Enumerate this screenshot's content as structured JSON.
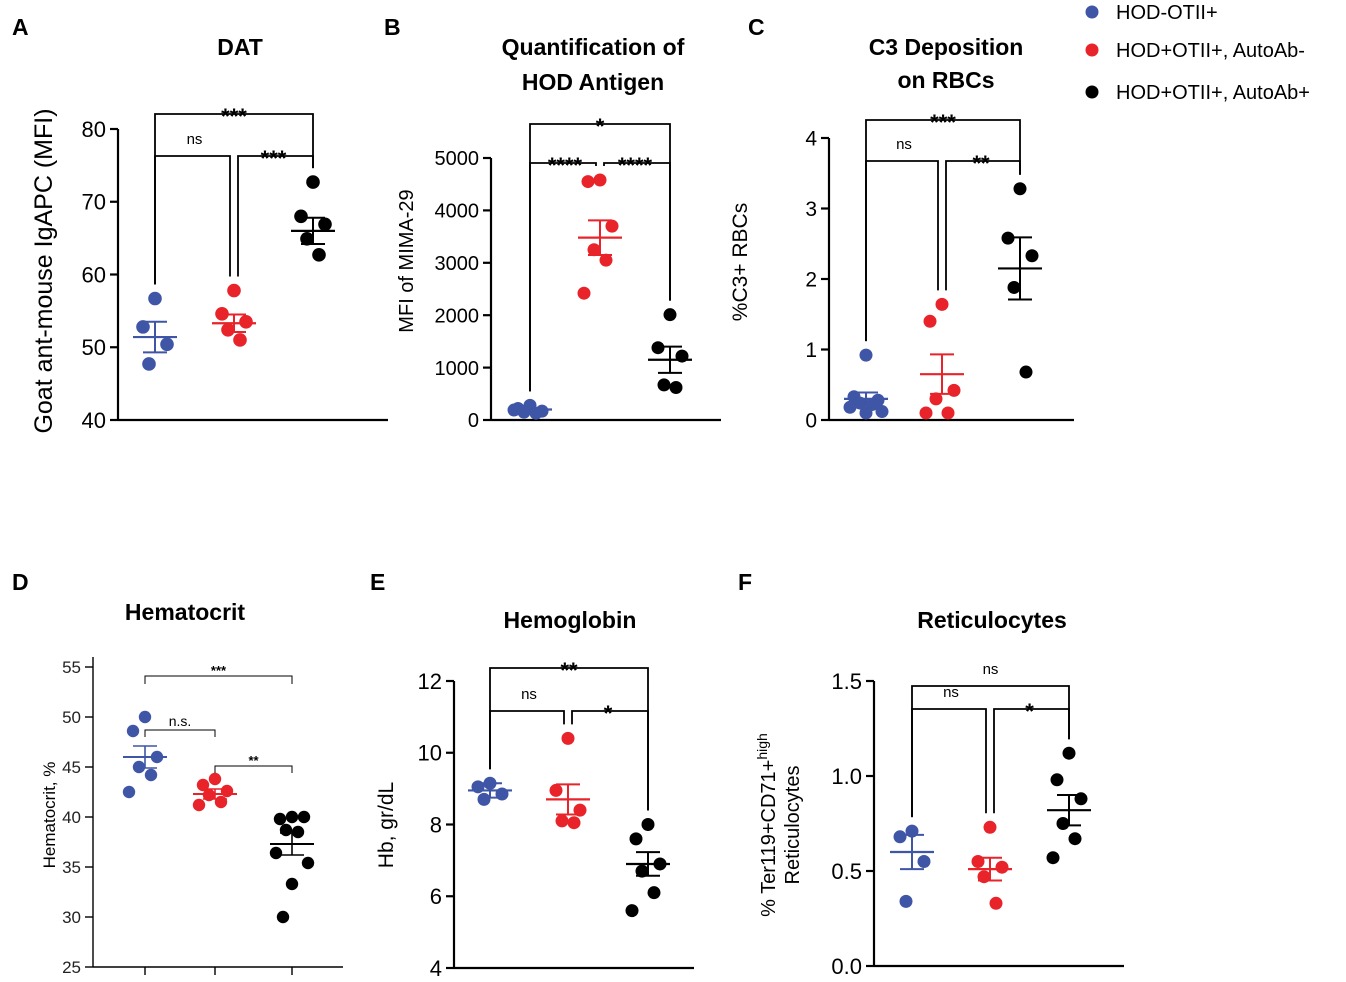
{
  "colors": {
    "group1": "#3f55a5",
    "group2": "#e8232a",
    "group3": "#000000",
    "axis": "#000000",
    "bracket": "#000000"
  },
  "legend": [
    {
      "label": "HOD-OTII+",
      "color": "#3f55a5"
    },
    {
      "label": "HOD+OTII+, AutoAb-",
      "color": "#e8232a"
    },
    {
      "label": "HOD+OTII+, AutoAb+",
      "color": "#000000"
    }
  ],
  "chart_data": [
    {
      "panel": "A",
      "type": "scatter",
      "title": "DAT",
      "title2": "",
      "ylabel": "Goat ant-mouse IgAPC (MFI)",
      "ylabel2": "",
      "ylim": [
        40,
        80
      ],
      "yticks": [
        "40",
        "50",
        "60",
        "70",
        "80"
      ],
      "ytick_values": [
        40,
        50,
        60,
        70,
        80
      ],
      "series": [
        {
          "name": "HOD-OTII+",
          "values": [
            56.7,
            52.8,
            50.4,
            47.7
          ],
          "mean": 51.4,
          "sem": 2.1
        },
        {
          "name": "HOD+OTII+, AutoAb-",
          "values": [
            57.8,
            54.6,
            53.5,
            52.4,
            51.0
          ],
          "mean": 53.3,
          "sem": 1.2
        },
        {
          "name": "HOD+OTII+, AutoAb+",
          "values": [
            72.7,
            68.0,
            66.9,
            64.9,
            62.7
          ],
          "mean": 66.0,
          "sem": 1.8
        }
      ],
      "comparisons": [
        {
          "from": 1,
          "to": 2,
          "label": "ns",
          "level": 1
        },
        {
          "from": 2,
          "to": 3,
          "label": "***",
          "level": 1
        },
        {
          "from": 1,
          "to": 3,
          "label": "***",
          "level": 2
        }
      ]
    },
    {
      "panel": "B",
      "type": "scatter",
      "title": "Quantification of",
      "title2": "HOD Antigen",
      "ylabel": "MFI of MIMA-29",
      "ylabel2": "",
      "ylim": [
        0,
        5000
      ],
      "yticks": [
        "0",
        "1000",
        "2000",
        "3000",
        "4000",
        "5000"
      ],
      "ytick_values": [
        0,
        1000,
        2000,
        3000,
        4000,
        5000
      ],
      "series": [
        {
          "name": "HOD-OTII+",
          "values": [
            280,
            220,
            170,
            150,
            130,
            190
          ],
          "mean": 200,
          "sem": 30
        },
        {
          "name": "HOD+OTII+, AutoAb-",
          "values": [
            4580,
            4550,
            3700,
            3250,
            3050,
            2420
          ],
          "mean": 3480,
          "sem": 330
        },
        {
          "name": "HOD+OTII+, AutoAb+",
          "values": [
            2010,
            1380,
            1220,
            670,
            620
          ],
          "mean": 1150,
          "sem": 250
        }
      ],
      "comparisons": [
        {
          "from": 1,
          "to": 2,
          "label": "****",
          "level": 1
        },
        {
          "from": 2,
          "to": 3,
          "label": "****",
          "level": 1
        },
        {
          "from": 1,
          "to": 3,
          "label": "*",
          "level": 2
        }
      ]
    },
    {
      "panel": "C",
      "type": "scatter",
      "title": "C3 Deposition",
      "title2": "on RBCs",
      "ylabel": "%C3+ RBCs",
      "ylabel2": "",
      "ylim": [
        0,
        4
      ],
      "yticks": [
        "0",
        "1",
        "2",
        "3",
        "4"
      ],
      "ytick_values": [
        0,
        1,
        2,
        3,
        4
      ],
      "series": [
        {
          "name": "HOD-OTII+",
          "values": [
            0.92,
            0.33,
            0.28,
            0.24,
            0.22,
            0.18,
            0.12,
            0.1
          ],
          "mean": 0.3,
          "sem": 0.09
        },
        {
          "name": "HOD+OTII+, AutoAb-",
          "values": [
            1.64,
            1.4,
            0.42,
            0.3,
            0.1,
            0.1
          ],
          "mean": 0.65,
          "sem": 0.28
        },
        {
          "name": "HOD+OTII+, AutoAb+",
          "values": [
            3.28,
            2.58,
            2.33,
            1.88,
            0.68
          ],
          "mean": 2.15,
          "sem": 0.44
        }
      ],
      "comparisons": [
        {
          "from": 1,
          "to": 2,
          "label": "ns",
          "level": 1
        },
        {
          "from": 2,
          "to": 3,
          "label": "**",
          "level": 1
        },
        {
          "from": 1,
          "to": 3,
          "label": "***",
          "level": 2
        }
      ]
    },
    {
      "panel": "D",
      "type": "scatter",
      "title": "Hematocrit",
      "title2": "",
      "ylabel": "Hematocrit, %",
      "ylabel2": "",
      "ylim": [
        25,
        55
      ],
      "yticks": [
        "25",
        "30",
        "35",
        "40",
        "45",
        "50",
        "55"
      ],
      "ytick_values": [
        25,
        30,
        35,
        40,
        45,
        50,
        55
      ],
      "series": [
        {
          "name": "HOD-OTII+",
          "values": [
            50.0,
            48.6,
            46.0,
            45.0,
            44.2,
            42.5
          ],
          "mean": 46.0,
          "sem": 1.1
        },
        {
          "name": "HOD+OTII+, AutoAb-",
          "values": [
            43.8,
            43.2,
            42.6,
            42.2,
            41.5,
            41.2
          ],
          "mean": 42.3,
          "sem": 0.5
        },
        {
          "name": "HOD+OTII+, AutoAb+",
          "values": [
            40.0,
            39.8,
            40.0,
            38.7,
            38.5,
            36.4,
            35.4,
            33.3,
            30.0
          ],
          "mean": 37.3,
          "sem": 1.1
        }
      ],
      "comparisons": [
        {
          "from": 1,
          "to": 2,
          "label": "n.s.",
          "level": 1
        },
        {
          "from": 2,
          "to": 3,
          "label": "**",
          "level": 1
        },
        {
          "from": 1,
          "to": 3,
          "label": "***",
          "level": 2
        }
      ]
    },
    {
      "panel": "E",
      "type": "scatter",
      "title": "Hemoglobin",
      "title2": "",
      "ylabel": "Hb, gr/dL",
      "ylabel2": "",
      "ylim": [
        4,
        12
      ],
      "yticks": [
        "4",
        "6",
        "8",
        "10",
        "12"
      ],
      "ytick_values": [
        4,
        6,
        8,
        10,
        12
      ],
      "series": [
        {
          "name": "HOD-OTII+",
          "values": [
            9.15,
            9.05,
            8.85,
            8.7
          ],
          "mean": 8.95,
          "sem": 0.2
        },
        {
          "name": "HOD+OTII+, AutoAb-",
          "values": [
            10.4,
            8.95,
            8.4,
            8.1,
            8.05
          ],
          "mean": 8.7,
          "sem": 0.42
        },
        {
          "name": "HOD+OTII+, AutoAb+",
          "values": [
            8.0,
            7.6,
            6.9,
            6.7,
            6.1,
            5.6
          ],
          "mean": 6.9,
          "sem": 0.33
        }
      ],
      "comparisons": [
        {
          "from": 1,
          "to": 2,
          "label": "ns",
          "level": 1
        },
        {
          "from": 2,
          "to": 3,
          "label": "*",
          "level": 1
        },
        {
          "from": 1,
          "to": 3,
          "label": "**",
          "level": 2
        }
      ]
    },
    {
      "panel": "F",
      "type": "scatter",
      "title": "Reticulocytes",
      "title2": "",
      "ylabel": "% Ter119+CD71+",
      "ylabel_sup": "high",
      "ylabel2": "Reticulocytes",
      "ylim": [
        0,
        1.5
      ],
      "yticks": [
        "0.0",
        "0.5",
        "1.0",
        "1.5"
      ],
      "ytick_values": [
        0,
        0.5,
        1.0,
        1.5
      ],
      "series": [
        {
          "name": "HOD-OTII+",
          "values": [
            0.71,
            0.68,
            0.55,
            0.34
          ],
          "mean": 0.6,
          "sem": 0.09
        },
        {
          "name": "HOD+OTII+, AutoAb-",
          "values": [
            0.73,
            0.55,
            0.52,
            0.47,
            0.33
          ],
          "mean": 0.51,
          "sem": 0.06
        },
        {
          "name": "HOD+OTII+, AutoAb+",
          "values": [
            1.12,
            0.98,
            0.88,
            0.75,
            0.67,
            0.57
          ],
          "mean": 0.82,
          "sem": 0.08
        }
      ],
      "comparisons": [
        {
          "from": 1,
          "to": 2,
          "label": "ns",
          "level": 1
        },
        {
          "from": 2,
          "to": 3,
          "label": "*",
          "level": 1
        },
        {
          "from": 1,
          "to": 3,
          "label": "ns",
          "level": 2
        }
      ]
    }
  ]
}
